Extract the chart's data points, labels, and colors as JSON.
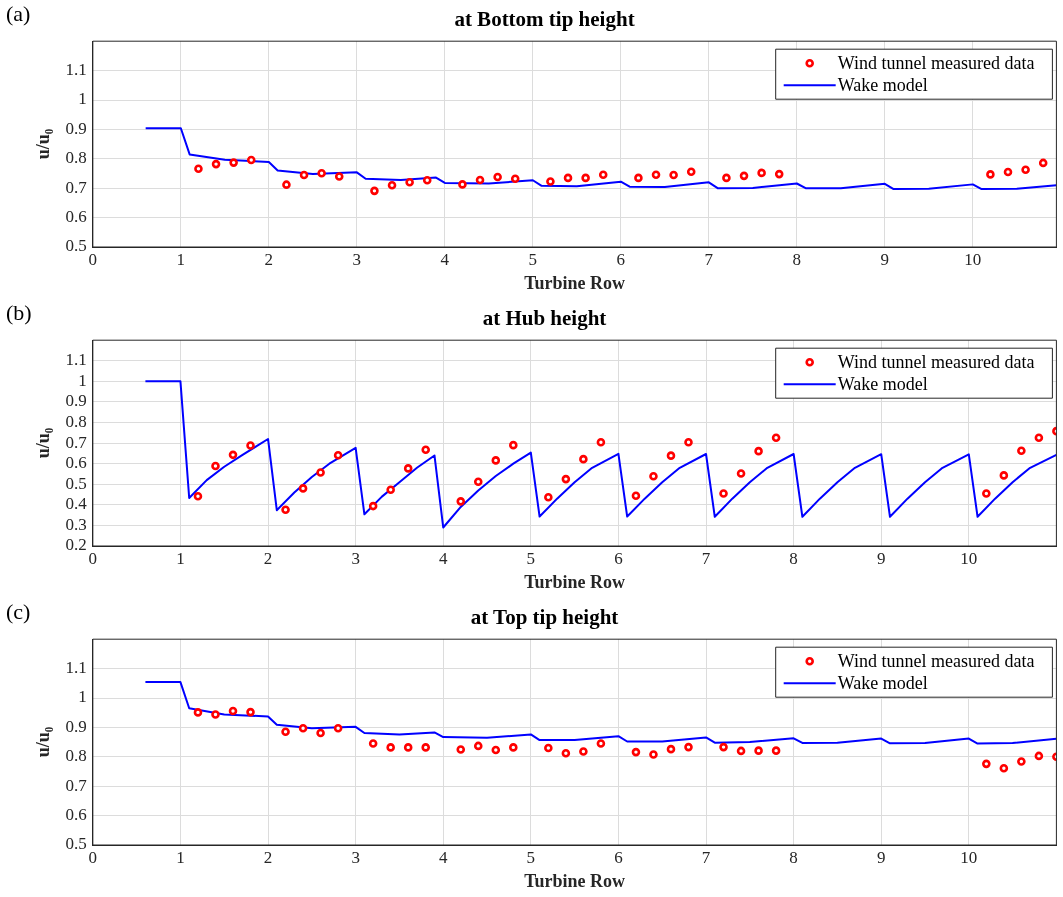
{
  "chart_data": [
    {
      "type": "line",
      "title": "at Bottom tip height",
      "xlabel": "Turbine Row",
      "ylabel": "u/u₀",
      "annotations": [
        "(a)"
      ],
      "xlim": [
        0,
        10.95
      ],
      "xticks": [
        0,
        1,
        2,
        3,
        4,
        5,
        6,
        7,
        8,
        9,
        10
      ],
      "ylim": [
        0.5,
        1.2
      ],
      "yticks": [
        0.5,
        0.6,
        0.7,
        0.8,
        0.9,
        1,
        1.1
      ],
      "grid": true,
      "legend": "top right",
      "series": [
        {
          "name": "Wind tunnel measured data",
          "type": "scatter",
          "marker": "circle",
          "color": "#ff0000",
          "x": [
            1.2,
            1.4,
            1.6,
            1.8,
            2.2,
            2.4,
            2.6,
            2.8,
            3.2,
            3.4,
            3.6,
            3.8,
            4.2,
            4.4,
            4.6,
            4.8,
            5.2,
            5.4,
            5.6,
            5.8,
            6.2,
            6.4,
            6.6,
            6.8,
            7.2,
            7.4,
            7.6,
            7.8,
            10.2,
            10.4,
            10.6,
            10.8
          ],
          "values": [
            0.766,
            0.782,
            0.787,
            0.796,
            0.712,
            0.745,
            0.751,
            0.74,
            0.691,
            0.71,
            0.72,
            0.727,
            0.713,
            0.728,
            0.738,
            0.732,
            0.723,
            0.735,
            0.735,
            0.746,
            0.735,
            0.746,
            0.745,
            0.756,
            0.735,
            0.742,
            0.752,
            0.748,
            0.747,
            0.755,
            0.763,
            0.786
          ]
        },
        {
          "name": "Wake model",
          "type": "line",
          "marker": "none",
          "color": "#0000ff",
          "x": [
            0.6,
            1,
            1.1,
            1.5,
            2,
            2.1,
            2.5,
            3,
            3.1,
            3.5,
            3.9,
            4,
            4.5,
            5,
            5.1,
            5.5,
            6,
            6.1,
            6.5,
            7,
            7.1,
            7.5,
            8,
            8.1,
            8.5,
            9,
            9.1,
            9.5,
            10,
            10.1,
            10.5,
            10.95
          ],
          "values": [
            0.904,
            0.904,
            0.815,
            0.797,
            0.789,
            0.76,
            0.748,
            0.754,
            0.732,
            0.728,
            0.736,
            0.718,
            0.716,
            0.727,
            0.708,
            0.707,
            0.722,
            0.705,
            0.704,
            0.72,
            0.7,
            0.701,
            0.716,
            0.7,
            0.7,
            0.715,
            0.697,
            0.698,
            0.713,
            0.697,
            0.698,
            0.71
          ]
        }
      ]
    },
    {
      "type": "line",
      "title": "at Hub height",
      "xlabel": "Turbine Row",
      "ylabel": "u/u₀",
      "annotations": [
        "(b)"
      ],
      "xlim": [
        0,
        11
      ],
      "xticks": [
        0,
        1,
        2,
        3,
        4,
        5,
        6,
        7,
        8,
        9,
        10
      ],
      "ylim": [
        0.2,
        1.2
      ],
      "yticks": [
        0.2,
        0.3,
        0.4,
        0.5,
        0.6,
        0.7,
        0.8,
        0.9,
        1,
        1.1
      ],
      "grid": true,
      "legend": "top right",
      "series": [
        {
          "name": "Wind tunnel measured data",
          "type": "scatter",
          "marker": "circle",
          "color": "#ff0000",
          "x": [
            1.2,
            1.4,
            1.6,
            1.8,
            2.2,
            2.4,
            2.6,
            2.8,
            3.2,
            3.4,
            3.6,
            3.8,
            4.2,
            4.4,
            4.6,
            4.8,
            5.2,
            5.4,
            5.6,
            5.8,
            6.2,
            6.4,
            6.6,
            6.8,
            7.2,
            7.4,
            7.6,
            7.8,
            10.2,
            10.4,
            10.6,
            10.8,
            11
          ],
          "values": [
            0.442,
            0.589,
            0.643,
            0.688,
            0.376,
            0.48,
            0.557,
            0.641,
            0.394,
            0.473,
            0.577,
            0.668,
            0.417,
            0.512,
            0.616,
            0.69,
            0.437,
            0.525,
            0.622,
            0.704,
            0.444,
            0.539,
            0.639,
            0.704,
            0.455,
            0.552,
            0.661,
            0.726,
            0.455,
            0.543,
            0.663,
            0.726,
            0.758
          ]
        },
        {
          "name": "Wake model",
          "type": "line",
          "marker": "none",
          "color": "#0000ff",
          "x": [
            0.6,
            1,
            1.1,
            1.3,
            1.5,
            1.7,
            2,
            2.1,
            2.3,
            2.5,
            2.7,
            3,
            3.1,
            3.3,
            3.5,
            3.7,
            3.9,
            4,
            4.2,
            4.4,
            4.6,
            4.8,
            5,
            5.1,
            5.3,
            5.5,
            5.7,
            6,
            6.1,
            6.3,
            6.5,
            6.7,
            7,
            7.1,
            7.3,
            7.5,
            7.7,
            8,
            8.1,
            8.3,
            8.5,
            8.7,
            9,
            9.1,
            9.3,
            9.5,
            9.7,
            10,
            10.1,
            10.3,
            10.5,
            10.7,
            11
          ],
          "values": [
            1,
            1,
            0.433,
            0.52,
            0.585,
            0.64,
            0.72,
            0.374,
            0.46,
            0.535,
            0.6,
            0.677,
            0.354,
            0.44,
            0.51,
            0.58,
            0.64,
            0.29,
            0.39,
            0.47,
            0.54,
            0.6,
            0.654,
            0.343,
            0.43,
            0.51,
            0.58,
            0.648,
            0.343,
            0.43,
            0.51,
            0.58,
            0.647,
            0.342,
            0.43,
            0.51,
            0.58,
            0.647,
            0.342,
            0.43,
            0.51,
            0.58,
            0.646,
            0.342,
            0.43,
            0.51,
            0.58,
            0.645,
            0.342,
            0.43,
            0.51,
            0.58,
            0.643
          ]
        }
      ]
    },
    {
      "type": "line",
      "title": "at Top tip height",
      "xlabel": "Turbine Row",
      "ylabel": "u/u₀",
      "annotations": [
        "(c)"
      ],
      "xlim": [
        0,
        11
      ],
      "xticks": [
        0,
        1,
        2,
        3,
        4,
        5,
        6,
        7,
        8,
        9,
        10
      ],
      "ylim": [
        0.5,
        1.2
      ],
      "yticks": [
        0.5,
        0.6,
        0.7,
        0.8,
        0.9,
        1,
        1.1
      ],
      "grid": true,
      "legend": "top right",
      "series": [
        {
          "name": "Wind tunnel measured data",
          "type": "scatter",
          "marker": "circle",
          "color": "#ff0000",
          "x": [
            1.2,
            1.4,
            1.6,
            1.8,
            2.2,
            2.4,
            2.6,
            2.8,
            3.2,
            3.4,
            3.6,
            3.8,
            4.2,
            4.4,
            4.6,
            4.8,
            5.2,
            5.4,
            5.6,
            5.8,
            6.2,
            6.4,
            6.6,
            6.8,
            7.2,
            7.4,
            7.6,
            7.8,
            10.2,
            10.4,
            10.6,
            10.8,
            11
          ],
          "values": [
            0.951,
            0.944,
            0.956,
            0.952,
            0.885,
            0.897,
            0.881,
            0.897,
            0.845,
            0.832,
            0.832,
            0.832,
            0.825,
            0.837,
            0.823,
            0.832,
            0.83,
            0.812,
            0.818,
            0.845,
            0.816,
            0.808,
            0.826,
            0.833,
            0.833,
            0.82,
            0.821,
            0.821,
            0.776,
            0.761,
            0.784,
            0.803,
            0.8
          ]
        },
        {
          "name": "Wake model",
          "type": "line",
          "marker": "none",
          "color": "#0000ff",
          "x": [
            0.6,
            1,
            1.1,
            1.5,
            2,
            2.1,
            2.5,
            3,
            3.1,
            3.5,
            3.9,
            4,
            4.5,
            5,
            5.1,
            5.5,
            6,
            6.1,
            6.5,
            7,
            7.1,
            7.5,
            8,
            8.1,
            8.5,
            9,
            9.1,
            9.5,
            10,
            10.1,
            10.5,
            11
          ],
          "values": [
            1.054,
            1.054,
            0.965,
            0.944,
            0.937,
            0.909,
            0.897,
            0.902,
            0.881,
            0.876,
            0.883,
            0.867,
            0.865,
            0.876,
            0.857,
            0.857,
            0.87,
            0.852,
            0.852,
            0.866,
            0.848,
            0.85,
            0.863,
            0.847,
            0.848,
            0.862,
            0.846,
            0.847,
            0.862,
            0.845,
            0.847,
            0.861
          ]
        }
      ]
    }
  ]
}
